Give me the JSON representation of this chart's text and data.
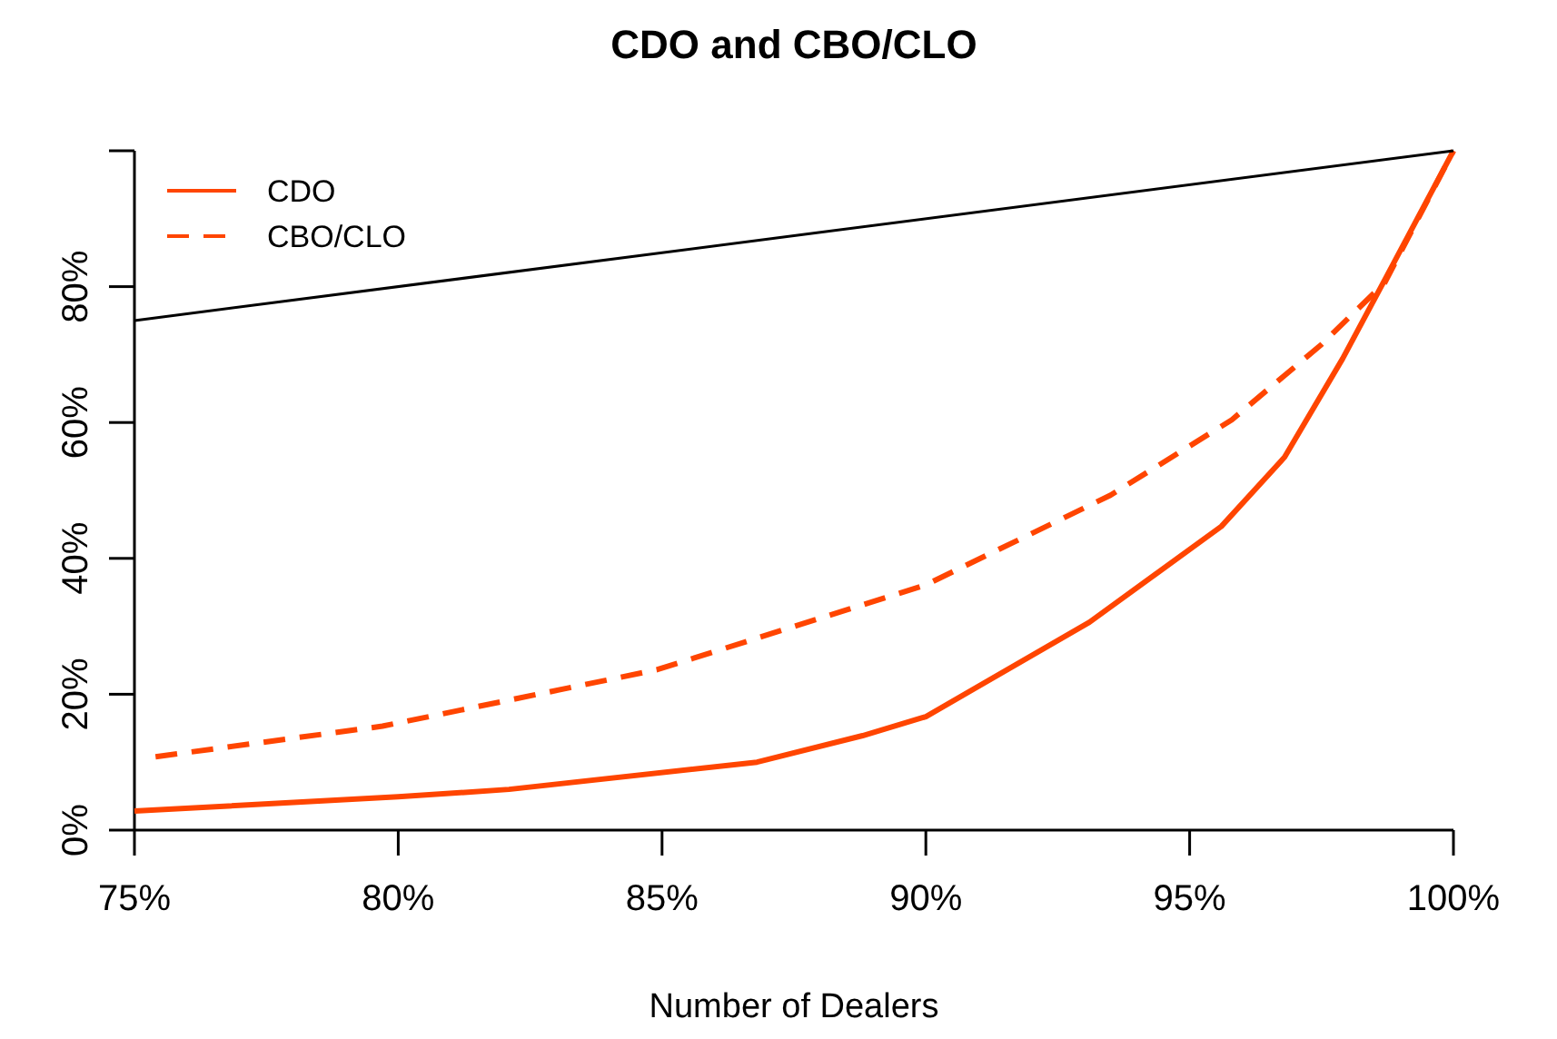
{
  "chart_data": {
    "type": "line",
    "title": "CDO and CBO/CLO",
    "xlabel": "Number of Dealers",
    "xlim": [
      75,
      100
    ],
    "ylim": [
      0,
      100
    ],
    "xticks": [
      {
        "value": 75,
        "label": "75%"
      },
      {
        "value": 80,
        "label": "80%"
      },
      {
        "value": 85,
        "label": "85%"
      },
      {
        "value": 90,
        "label": "90%"
      },
      {
        "value": 95,
        "label": "95%"
      },
      {
        "value": 100,
        "label": "100%"
      }
    ],
    "yticks": [
      {
        "value": 0,
        "label": "0%"
      },
      {
        "value": 20,
        "label": "20%"
      },
      {
        "value": 40,
        "label": "40%"
      },
      {
        "value": 60,
        "label": "60%"
      },
      {
        "value": 80,
        "label": "80%"
      },
      {
        "value": 100,
        "label": null
      }
    ],
    "legend": "top left",
    "grid": false,
    "series": [
      {
        "name": "CDO",
        "color": "#ff4500",
        "line_style": "solid",
        "x": [
          75,
          80,
          82.1,
          86.8,
          88.8,
          90,
          93.1,
          95.6,
          96.8,
          97.9,
          99,
          100
        ],
        "values": [
          2.8,
          4.9,
          6,
          10,
          13.9,
          16.7,
          30.6,
          44.7,
          54.9,
          69.4,
          85.4,
          100
        ]
      },
      {
        "name": "CBO/CLO",
        "color": "#ff4500",
        "line_style": "dashed",
        "x": [
          75.4,
          79.7,
          84.9,
          90,
          93.5,
          95.8,
          97.5,
          98.7,
          100
        ],
        "values": [
          10.8,
          15.3,
          23.6,
          36.1,
          49.3,
          60.4,
          71.5,
          80.6,
          100
        ]
      },
      {
        "color": "#000000",
        "line_style": "solid",
        "x": [
          75,
          100
        ],
        "values": [
          75,
          100
        ]
      }
    ]
  }
}
